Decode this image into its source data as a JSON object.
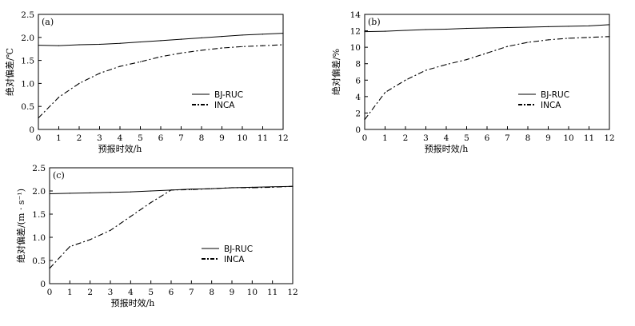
{
  "chart_data": [
    {
      "type": "line",
      "panel_label": "(a)",
      "xlabel": "预报时效/h",
      "ylabel": "绝对偏差/℃",
      "xlim": [
        0,
        12
      ],
      "ylim": [
        0,
        2.5
      ],
      "x_ticks": [
        "0",
        "1",
        "2",
        "3",
        "4",
        "5",
        "6",
        "7",
        "8",
        "9",
        "10",
        "11",
        "12"
      ],
      "y_ticks": [
        "0",
        "0.5",
        "1.0",
        "1.5",
        "2.0",
        "2.5"
      ],
      "y_tick_values": [
        0,
        0.5,
        1.0,
        1.5,
        2.0,
        2.5
      ],
      "legend_position": "right-middle",
      "x": [
        0,
        1,
        2,
        3,
        4,
        5,
        6,
        7,
        8,
        9,
        10,
        11,
        12
      ],
      "series": [
        {
          "name": "BJ-RUC",
          "style": "solid",
          "values": [
            1.83,
            1.82,
            1.84,
            1.85,
            1.87,
            1.9,
            1.93,
            1.96,
            1.99,
            2.02,
            2.05,
            2.07,
            2.09
          ]
        },
        {
          "name": "INCA",
          "style": "dashdot",
          "values": [
            0.25,
            0.7,
            1.0,
            1.22,
            1.37,
            1.47,
            1.58,
            1.66,
            1.72,
            1.77,
            1.8,
            1.82,
            1.84
          ]
        }
      ]
    },
    {
      "type": "line",
      "panel_label": "(b)",
      "xlabel": "预报时效/h",
      "ylabel": "绝对偏差/%",
      "xlim": [
        0,
        12
      ],
      "ylim": [
        0,
        14
      ],
      "x_ticks": [
        "0",
        "1",
        "2",
        "3",
        "4",
        "5",
        "6",
        "7",
        "8",
        "9",
        "10",
        "11",
        "12"
      ],
      "y_ticks": [
        "0",
        "2",
        "4",
        "6",
        "8",
        "10",
        "12",
        "14"
      ],
      "y_tick_values": [
        0,
        2,
        4,
        6,
        8,
        10,
        12,
        14
      ],
      "legend_position": "right-middle",
      "x": [
        0,
        1,
        2,
        3,
        4,
        5,
        6,
        7,
        8,
        9,
        10,
        11,
        12
      ],
      "series": [
        {
          "name": "BJ-RUC",
          "style": "solid",
          "values": [
            11.9,
            11.95,
            12.05,
            12.15,
            12.2,
            12.3,
            12.35,
            12.4,
            12.45,
            12.5,
            12.55,
            12.6,
            12.75
          ]
        },
        {
          "name": "INCA",
          "style": "dashdot",
          "values": [
            1.2,
            4.5,
            6.0,
            7.2,
            7.9,
            8.5,
            9.3,
            10.1,
            10.6,
            10.9,
            11.1,
            11.2,
            11.3
          ]
        }
      ]
    },
    {
      "type": "line",
      "panel_label": "(c)",
      "xlabel": "预报时效/h",
      "ylabel": "绝对偏差/(m · s⁻¹)",
      "xlim": [
        0,
        12
      ],
      "ylim": [
        0,
        2.5
      ],
      "x_ticks": [
        "0",
        "1",
        "2",
        "3",
        "4",
        "5",
        "6",
        "7",
        "8",
        "9",
        "10",
        "11",
        "12"
      ],
      "y_ticks": [
        "0",
        "0.5",
        "1.0",
        "1.5",
        "2.0",
        "2.5"
      ],
      "y_tick_values": [
        0,
        0.5,
        1.0,
        1.5,
        2.0,
        2.5
      ],
      "legend_position": "right-middle",
      "x": [
        0,
        1,
        2,
        3,
        4,
        5,
        6,
        7,
        8,
        9,
        10,
        11,
        12
      ],
      "series": [
        {
          "name": "BJ-RUC",
          "style": "solid",
          "values": [
            1.94,
            1.95,
            1.96,
            1.97,
            1.98,
            2.0,
            2.02,
            2.04,
            2.05,
            2.07,
            2.08,
            2.09,
            2.1
          ]
        },
        {
          "name": "INCA",
          "style": "dashdot",
          "values": [
            0.33,
            0.8,
            0.95,
            1.15,
            1.45,
            1.75,
            2.02,
            2.03,
            2.05,
            2.07,
            2.07,
            2.08,
            2.1
          ]
        }
      ]
    }
  ]
}
